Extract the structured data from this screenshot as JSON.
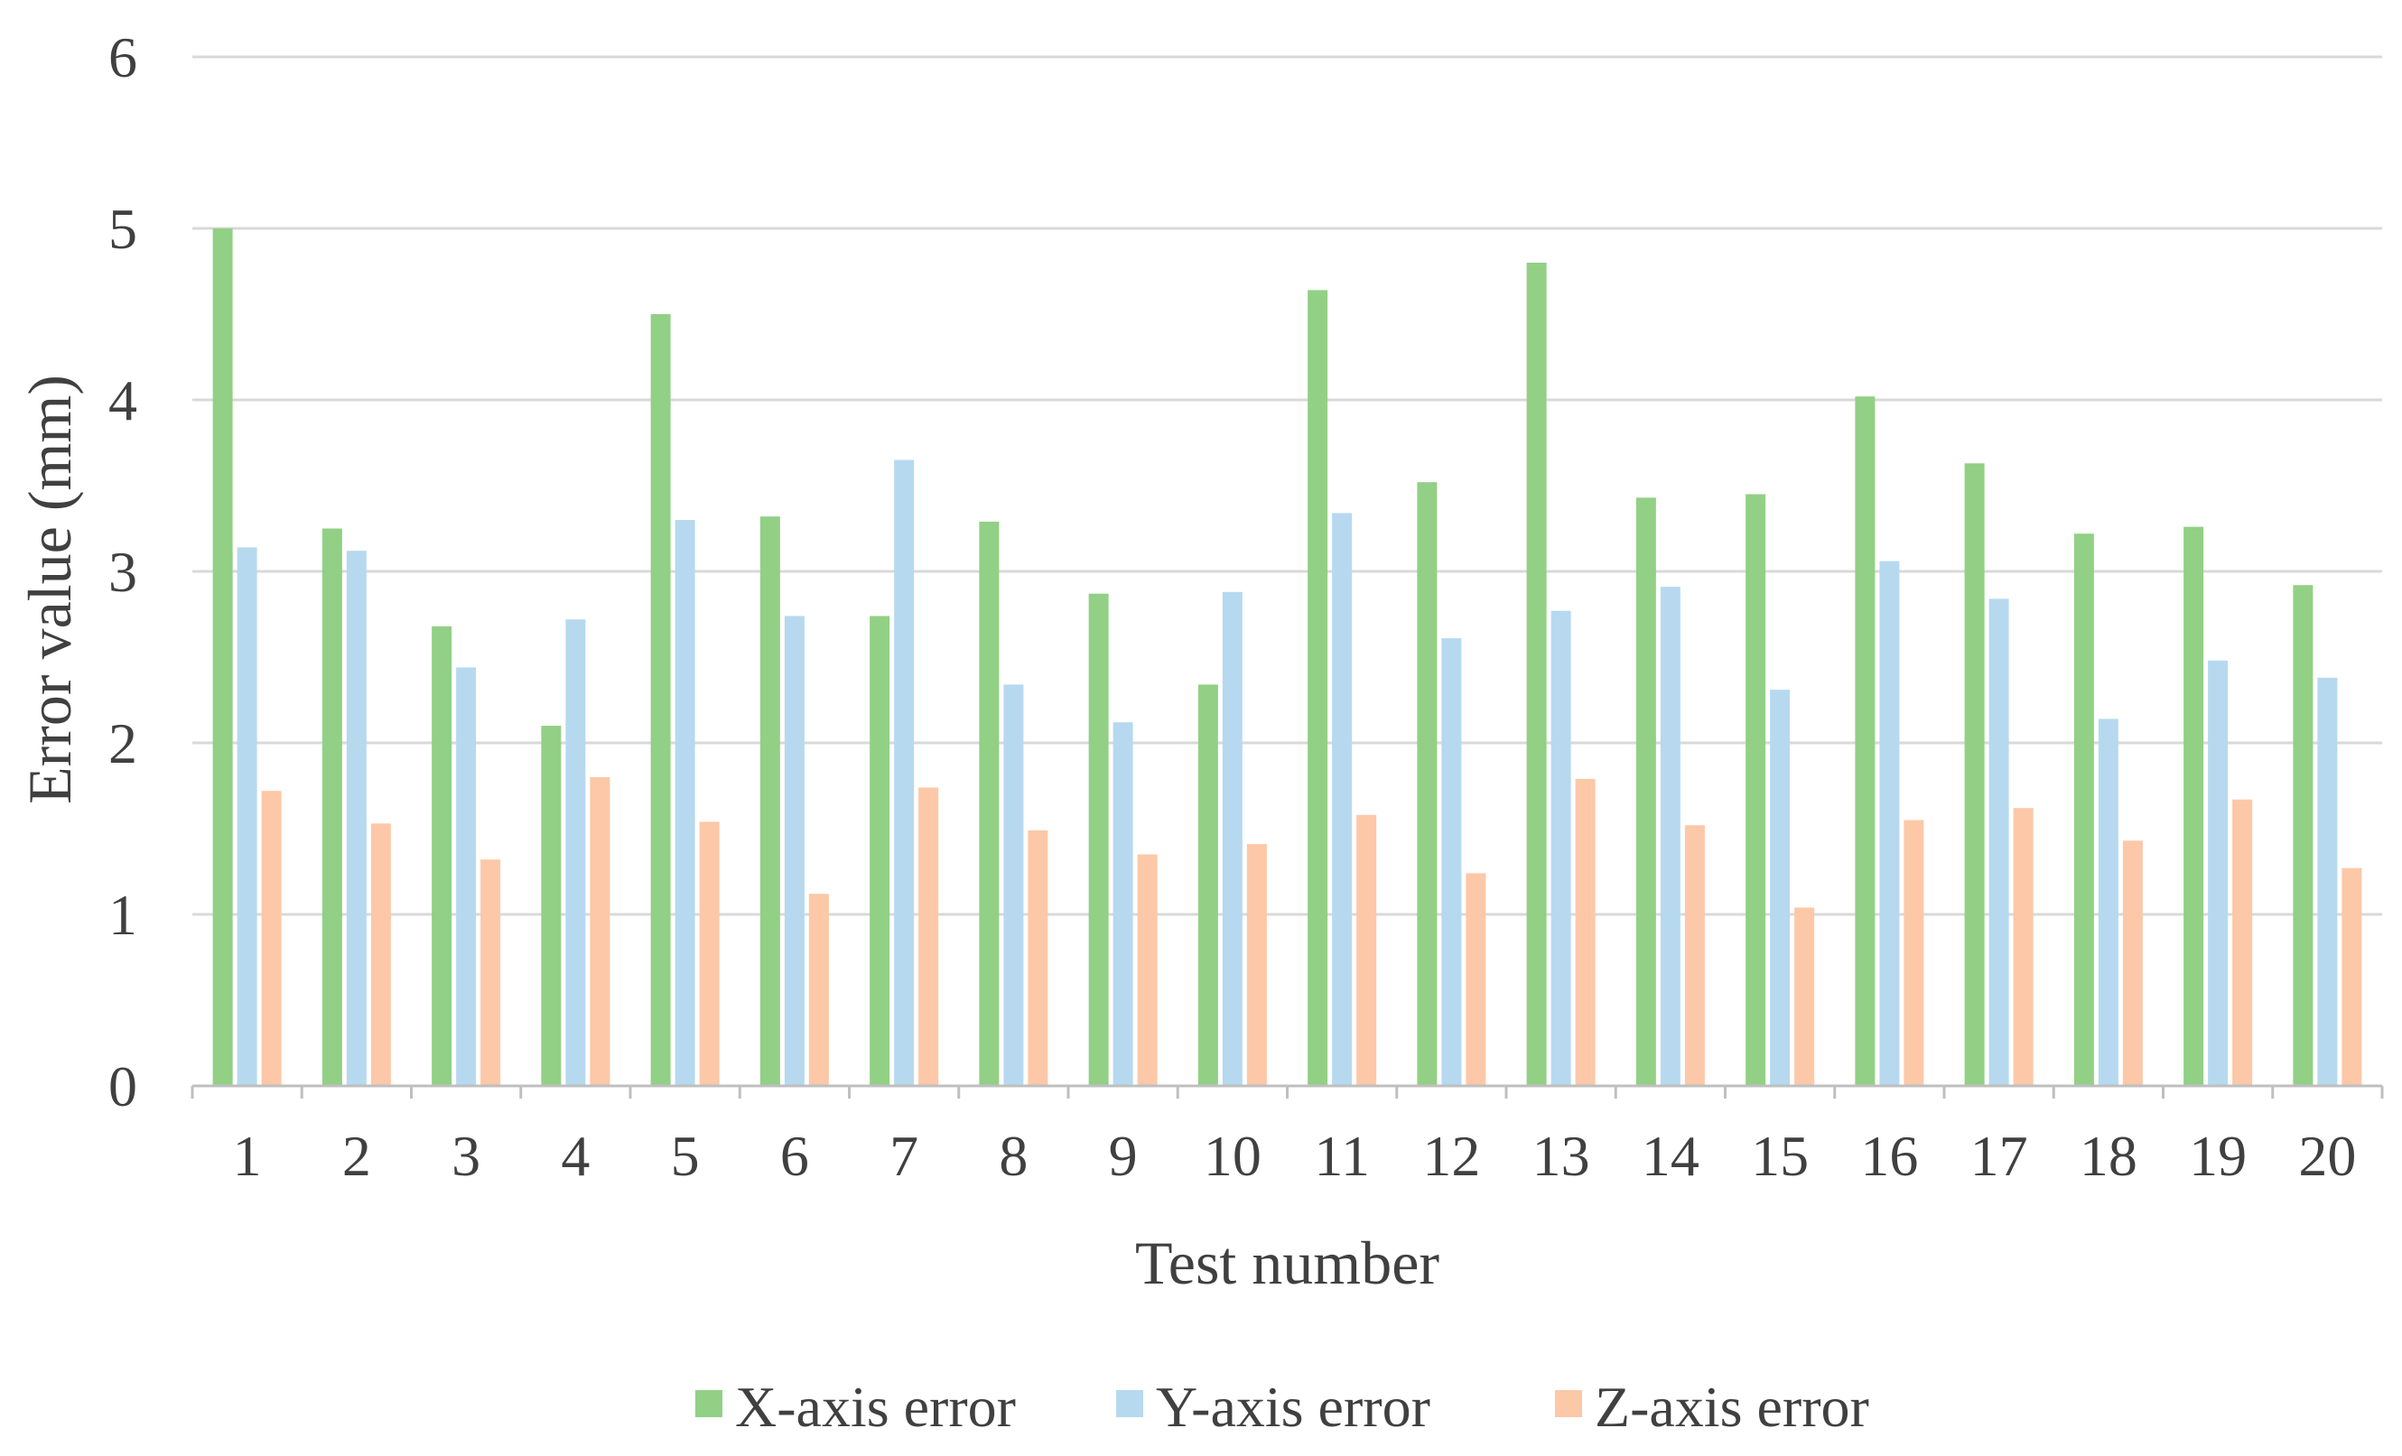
{
  "chart_data": {
    "type": "bar",
    "title": "",
    "xlabel": "Test number",
    "ylabel": "Error value (mm)",
    "ylim": [
      0,
      6
    ],
    "yticks": [
      "0",
      "1",
      "2",
      "3",
      "4",
      "5",
      "6"
    ],
    "grid": true,
    "legend": "bottom",
    "categories": [
      "1",
      "2",
      "3",
      "4",
      "5",
      "6",
      "7",
      "8",
      "9",
      "10",
      "11",
      "12",
      "13",
      "14",
      "15",
      "16",
      "17",
      "18",
      "19",
      "20"
    ],
    "series": [
      {
        "name": "X-axis error",
        "color": "#92d085",
        "values": [
          5.0,
          3.25,
          2.68,
          2.1,
          4.5,
          3.32,
          2.74,
          3.29,
          2.87,
          2.34,
          4.64,
          3.52,
          4.8,
          3.43,
          3.45,
          4.02,
          3.63,
          3.22,
          3.26,
          2.92
        ]
      },
      {
        "name": "Y-axis error",
        "color": "#b6d9f0",
        "values": [
          3.14,
          3.12,
          2.44,
          2.72,
          3.3,
          2.74,
          3.65,
          2.34,
          2.12,
          2.88,
          3.34,
          2.61,
          2.77,
          2.91,
          2.31,
          3.06,
          2.84,
          2.14,
          2.48,
          2.38
        ]
      },
      {
        "name": "Z-axis error",
        "color": "#fcc8a8",
        "values": [
          1.72,
          1.53,
          1.32,
          1.8,
          1.54,
          1.12,
          1.74,
          1.49,
          1.35,
          1.41,
          1.58,
          1.24,
          1.79,
          1.52,
          1.04,
          1.55,
          1.62,
          1.43,
          1.67,
          1.27
        ]
      }
    ]
  }
}
